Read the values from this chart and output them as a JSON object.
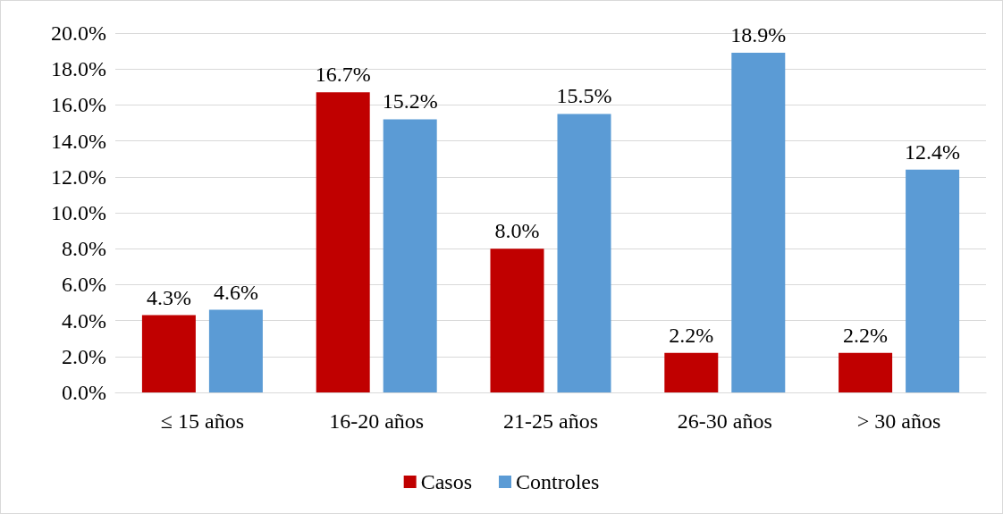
{
  "chart_data": {
    "type": "bar",
    "categories": [
      "≤ 15 años",
      "16-20 años",
      "21-25 años",
      "26-30 años",
      "> 30 años"
    ],
    "series": [
      {
        "name": "Casos",
        "color": "#c00000",
        "values": [
          4.3,
          16.7,
          8.0,
          2.2,
          2.2
        ],
        "value_labels": [
          "4.3%",
          "16.7%",
          "8.0%",
          "2.2%",
          "2.2%"
        ]
      },
      {
        "name": "Controles",
        "color": "#5b9bd5",
        "values": [
          4.6,
          15.2,
          15.5,
          18.9,
          12.4
        ],
        "value_labels": [
          "4.6%",
          "15.2%",
          "15.5%",
          "18.9%",
          "12.4%"
        ]
      }
    ],
    "ylim": [
      0,
      20
    ],
    "yticks": [
      {
        "value": 0,
        "label": "0.0%"
      },
      {
        "value": 2,
        "label": "2.0%"
      },
      {
        "value": 4,
        "label": "4.0%"
      },
      {
        "value": 6,
        "label": "6.0%"
      },
      {
        "value": 8,
        "label": "8.0%"
      },
      {
        "value": 10,
        "label": "10.0%"
      },
      {
        "value": 12,
        "label": "12.0%"
      },
      {
        "value": 14,
        "label": "14.0%"
      },
      {
        "value": 16,
        "label": "16.0%"
      },
      {
        "value": 18,
        "label": "18.0%"
      },
      {
        "value": 20,
        "label": "20.0%"
      }
    ],
    "grid": "y",
    "legend": "bottom"
  }
}
